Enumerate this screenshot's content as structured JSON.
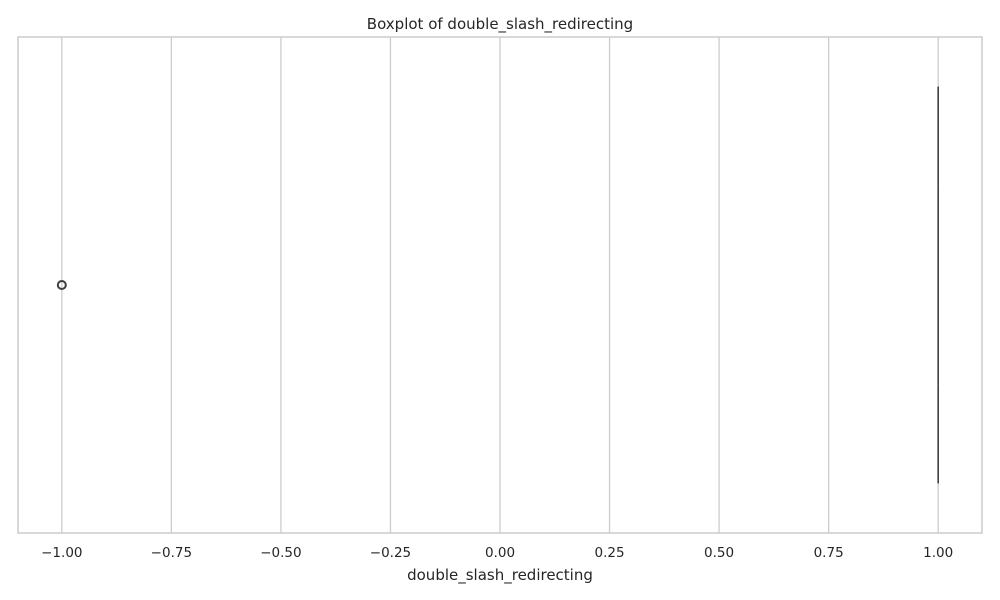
{
  "chart_data": {
    "type": "boxplot",
    "orientation": "horizontal",
    "title": "Boxplot of double_slash_redirecting",
    "xlabel": "double_slash_redirecting",
    "ylabel": "",
    "xlim": [
      -1.1,
      1.1
    ],
    "x_ticks": [
      -1.0,
      -0.75,
      -0.5,
      -0.25,
      0.0,
      0.25,
      0.5,
      0.75,
      1.0
    ],
    "x_tick_labels": [
      "−1.00",
      "−0.75",
      "−0.50",
      "−0.25",
      "0.00",
      "0.25",
      "0.50",
      "0.75",
      "1.00"
    ],
    "grid": "vertical",
    "series": [
      {
        "name": "double_slash_redirecting",
        "q1": 1.0,
        "median": 1.0,
        "q3": 1.0,
        "whisker_low": 1.0,
        "whisker_high": 1.0,
        "outliers": [
          -1.0
        ]
      }
    ]
  },
  "colors": {
    "background": "#ffffff",
    "spine": "#cccccc",
    "grid": "#cccccc",
    "box_line": "#3f3f3f",
    "text": "#262626"
  }
}
